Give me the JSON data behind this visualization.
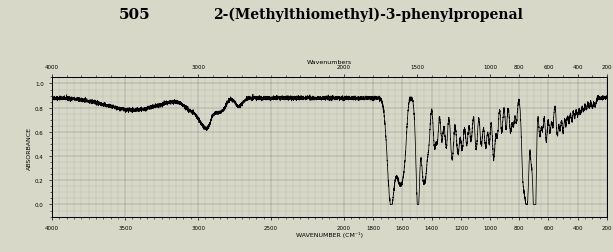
{
  "title_number": "505",
  "title_name": "2-(Methylthiomethyl)-3-phenylpropenal",
  "top_label": "Wavenumbers",
  "xlabel": "WAVENUMBER (CM⁻¹)",
  "ylabel": "ABSORBANCE",
  "background_color": "#d8d8c8",
  "line_color": "#000000",
  "grid_color": "#777777",
  "x_min": 4000,
  "x_max": 200,
  "y_min": -0.1,
  "y_max": 1.05,
  "ytick_vals": [
    0.0,
    0.2,
    0.4,
    0.6,
    0.8,
    1.0
  ],
  "ytick_labels": [
    "0.0",
    "0.2",
    "0.4",
    "0.6",
    "0.8",
    "1.0"
  ],
  "top_xticks": [
    4000,
    3000,
    2000,
    1500,
    1000,
    800,
    600,
    400,
    200
  ],
  "bottom_xticks": [
    4000,
    3500,
    3000,
    2500,
    2000,
    1800,
    1600,
    1400,
    1200,
    1000,
    800,
    600,
    400,
    200
  ]
}
